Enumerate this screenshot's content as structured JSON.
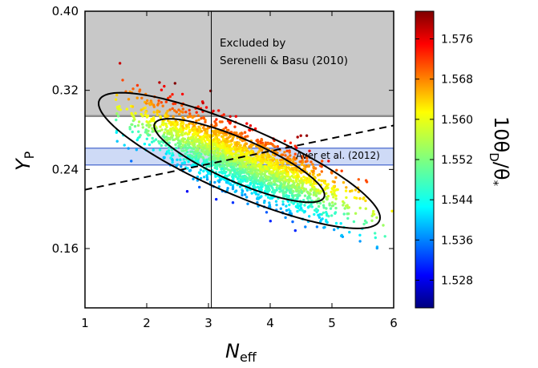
{
  "chart_data": {
    "type": "scatter",
    "xlim": [
      1,
      6
    ],
    "ylim": [
      0.1,
      0.4
    ],
    "x_ticks": [
      1,
      2,
      3,
      4,
      5,
      6
    ],
    "y_ticks": [
      0.16,
      0.24,
      0.32,
      0.4
    ],
    "y_tick_labels": [
      "0.16",
      "0.24",
      "0.32",
      "0.40"
    ],
    "xlabel": {
      "main": "N",
      "sub": "eff"
    },
    "ylabel": {
      "main": "Y",
      "sub": "P"
    },
    "colorbar": {
      "label": "10θ_D/θ_*",
      "label_main": "10θ",
      "label_sub": "D",
      "label_tail": "/θ",
      "label_tail_sub": "*",
      "range": [
        1.5225,
        1.5815
      ],
      "ticks": [
        1.528,
        1.536,
        1.544,
        1.552,
        1.56,
        1.568,
        1.576
      ],
      "tick_labels": [
        "1.528",
        "1.536",
        "1.544",
        "1.552",
        "1.560",
        "1.568",
        "1.576"
      ],
      "colormap": "jet"
    },
    "excluded_region": {
      "label_line1": "Excluded by",
      "label_line2": "Serenelli & Basu (2010)",
      "y_min": 0.294,
      "color": "#c8c8c8",
      "edge_color": "#8c8c8c"
    },
    "aver_band": {
      "label": "Aver et al. (2012)",
      "y_min": 0.2445,
      "y_max": 0.2615,
      "color": "#c6d3f5",
      "edge_color": "#4264cc"
    },
    "vertical_line_x": 3.046,
    "dashed_line": {
      "x": [
        1,
        6
      ],
      "y": [
        0.2195,
        0.2845
      ]
    },
    "contours": {
      "center": [
        3.5,
        0.249
      ],
      "slope": -0.0253,
      "inner": {
        "major_half": 1.38,
        "minor_half": 0.0238
      },
      "outer": {
        "major_half": 2.28,
        "minor_half": 0.0372
      }
    },
    "scatter": {
      "n_points": 2600,
      "marker": "dot"
    }
  }
}
